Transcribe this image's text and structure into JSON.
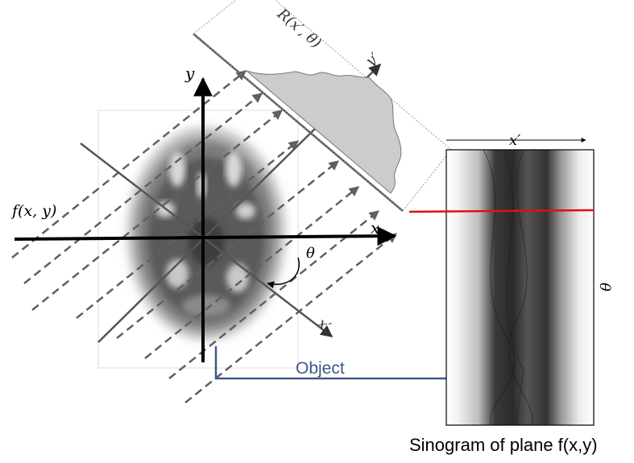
{
  "labels": {
    "axis_y": "y",
    "axis_x": "x",
    "axis_y_prime": "y′",
    "axis_x_prime": "x′",
    "function": "f(x, y)",
    "projection": "R(x′, θ)",
    "angle": "θ",
    "object": "Object",
    "sinogram_x_prime": "x′",
    "sinogram_theta": "θ",
    "caption": "Sinogram of plane f(x,y)"
  },
  "colors": {
    "axes": "#000000",
    "rotated_axes": "#555555",
    "rays": "#606060",
    "projection_fill": "#cccccc",
    "highlight_line": "#e01010",
    "object_arrow": "#3b5a86",
    "object_label": "#3b5a86"
  }
}
